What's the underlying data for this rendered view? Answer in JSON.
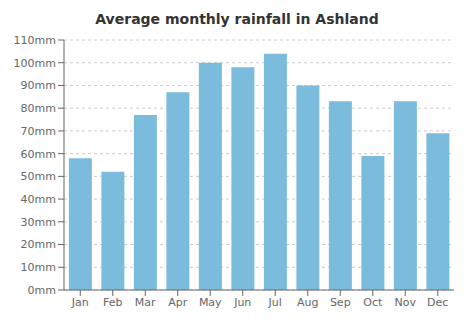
{
  "chart_data": {
    "type": "bar",
    "title": "Average monthly rainfall in Ashland",
    "categories": [
      "Jan",
      "Feb",
      "Mar",
      "Apr",
      "May",
      "Jun",
      "Jul",
      "Aug",
      "Sep",
      "Oct",
      "Nov",
      "Dec"
    ],
    "values": [
      58,
      52,
      77,
      87,
      100,
      98,
      104,
      90,
      83,
      59,
      83,
      69
    ],
    "color": "#7bbcdc",
    "ylim": [
      0,
      110
    ],
    "yticks": [
      {
        "value": 0,
        "label": "0mm"
      },
      {
        "value": 10,
        "label": "10mm"
      },
      {
        "value": 20,
        "label": "20mm"
      },
      {
        "value": 30,
        "label": "30mm"
      },
      {
        "value": 40,
        "label": "40mm"
      },
      {
        "value": 50,
        "label": "50mm"
      },
      {
        "value": 60,
        "label": "60mm"
      },
      {
        "value": 70,
        "label": "70mm"
      },
      {
        "value": 80,
        "label": "80mm"
      },
      {
        "value": 90,
        "label": "90mm"
      },
      {
        "value": 100,
        "label": "100mm"
      },
      {
        "value": 110,
        "label": "110mm"
      }
    ],
    "grid": true
  }
}
